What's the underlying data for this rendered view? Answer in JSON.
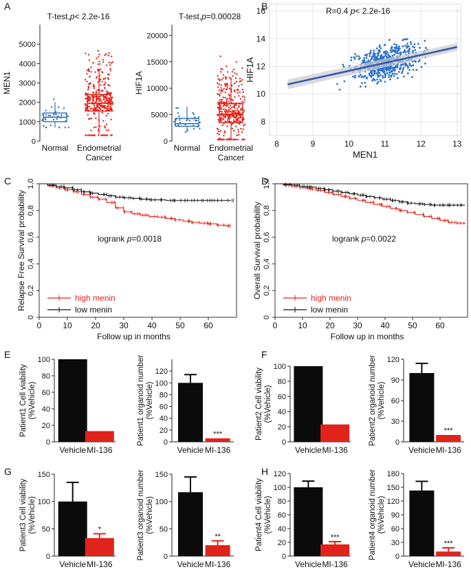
{
  "colors": {
    "normal": "#2e6fb7",
    "cancer": "#e2231a",
    "black": "#0b0b0b",
    "scatter_point": "#2e72c8",
    "fit_line": "#3957a6",
    "ci_band": "#c9ccd3",
    "km_high": "#e2231a",
    "km_low": "#111111"
  },
  "chart_data": [
    {
      "id": "A1",
      "type": "box",
      "panel_letter": "A",
      "title_prefix": "T-test,",
      "title_p": "p",
      "title_value": "< 2.2e-16",
      "ylabel": "MEN1",
      "ylim": [
        0,
        6000
      ],
      "yticks": [
        0,
        1000,
        2000,
        3000,
        4000,
        5000
      ],
      "categories": [
        "Normal",
        "Endometrial",
        "Cancer"
      ],
      "boxes": [
        {
          "name": "Normal",
          "q1": 1000,
          "median": 1230,
          "q3": 1450,
          "whisker_low": 700,
          "whisker_high": 2000,
          "n_points": 35
        },
        {
          "name": "Endometrial Cancer",
          "q1": 1550,
          "median": 1950,
          "q3": 2400,
          "whisker_low": 300,
          "whisker_high": 3700,
          "n_points": 360
        }
      ]
    },
    {
      "id": "A2",
      "type": "box",
      "title_prefix": "T-test,",
      "title_p": "p",
      "title_value": "=0.00028",
      "ylabel": "HIF1A",
      "ylim": [
        0,
        22000
      ],
      "yticks": [
        0,
        5000,
        10000,
        15000,
        20000
      ],
      "categories": [
        "Normal",
        "Endometrial",
        "Cancer"
      ],
      "boxes": [
        {
          "name": "Normal",
          "q1": 2800,
          "median": 3300,
          "q3": 4300,
          "whisker_low": 1700,
          "whisker_high": 6500,
          "n_points": 35
        },
        {
          "name": "Endometrial Cancer",
          "q1": 3500,
          "median": 5100,
          "q3": 7100,
          "whisker_low": 300,
          "whisker_high": 12000,
          "n_points": 360
        }
      ]
    },
    {
      "id": "B",
      "type": "scatter",
      "panel_letter": "B",
      "annotation_r": "R=0.4",
      "annotation_p": "p",
      "annotation_value": "< 2.2e-16",
      "xlabel": "MEN1",
      "ylabel": "HIF1A",
      "xlim": [
        7.8,
        13.1
      ],
      "ylim": [
        7,
        16.5
      ],
      "xticks": [
        8,
        9,
        10,
        11,
        12,
        13
      ],
      "yticks": [
        8,
        10,
        12,
        14,
        16
      ],
      "fit": {
        "x0": 8.3,
        "y0": 10.7,
        "x1": 13.0,
        "y1": 13.4
      },
      "center": [
        11.0,
        12.0
      ],
      "n_points": 550
    },
    {
      "id": "C",
      "type": "line",
      "subtype": "kaplan-meier",
      "panel_letter": "C",
      "ylabel": "Relapse Free Survival probability",
      "xlabel": "Follow up in months",
      "xlim": [
        0,
        70
      ],
      "ylim": [
        0,
        1.0
      ],
      "xticks": [
        0,
        10,
        20,
        30,
        40,
        50,
        60
      ],
      "yticks": [
        "0",
        "0,2",
        "0,4",
        "0,6",
        "0,8",
        "1,0"
      ],
      "annotation_prefix": "logrank ",
      "annotation_p": "p",
      "annotation_value": "=0.0018",
      "series": [
        {
          "name": "high menin",
          "x": [
            0,
            3,
            6,
            9,
            12,
            15,
            18,
            21,
            24,
            27,
            30,
            33,
            36,
            39,
            42,
            45,
            48,
            51,
            54,
            57,
            60,
            63,
            66,
            68
          ],
          "y": [
            1.0,
            0.985,
            0.97,
            0.955,
            0.94,
            0.92,
            0.9,
            0.885,
            0.86,
            0.82,
            0.79,
            0.775,
            0.765,
            0.755,
            0.75,
            0.74,
            0.73,
            0.72,
            0.71,
            0.705,
            0.7,
            0.69,
            0.685,
            0.685
          ]
        },
        {
          "name": "low menin",
          "x": [
            0,
            3,
            6,
            9,
            12,
            15,
            18,
            21,
            24,
            27,
            30,
            33,
            36,
            39,
            42,
            45,
            48,
            51,
            54,
            57,
            60,
            63,
            66,
            68
          ],
          "y": [
            1.0,
            0.99,
            0.98,
            0.97,
            0.955,
            0.94,
            0.93,
            0.92,
            0.91,
            0.9,
            0.895,
            0.89,
            0.885,
            0.88,
            0.88,
            0.875,
            0.875,
            0.875,
            0.875,
            0.875,
            0.875,
            0.875,
            0.875,
            0.875
          ]
        }
      ]
    },
    {
      "id": "D",
      "type": "line",
      "subtype": "kaplan-meier",
      "panel_letter": "D",
      "ylabel": "Overall Survival probability",
      "xlabel": "Follow up in months",
      "xlim": [
        0,
        70
      ],
      "ylim": [
        0,
        1.0
      ],
      "xticks": [
        0,
        10,
        20,
        30,
        40,
        50,
        60
      ],
      "yticks": [
        "0",
        "0,2",
        "0,4",
        "0,6",
        "0,8",
        "1,0"
      ],
      "annotation_prefix": "logrank ",
      "annotation_p": "p",
      "annotation_value": "=0.0022",
      "series": [
        {
          "name": "high menin",
          "x": [
            0,
            3,
            6,
            9,
            12,
            15,
            18,
            21,
            24,
            27,
            30,
            33,
            36,
            39,
            42,
            45,
            48,
            51,
            54,
            57,
            60,
            63,
            66,
            69
          ],
          "y": [
            1.0,
            0.99,
            0.98,
            0.97,
            0.96,
            0.95,
            0.935,
            0.92,
            0.905,
            0.89,
            0.875,
            0.86,
            0.845,
            0.83,
            0.815,
            0.8,
            0.785,
            0.77,
            0.755,
            0.74,
            0.725,
            0.71,
            0.705,
            0.7
          ]
        },
        {
          "name": "low menin",
          "x": [
            0,
            3,
            6,
            9,
            12,
            15,
            18,
            21,
            24,
            27,
            30,
            33,
            36,
            39,
            42,
            45,
            48,
            51,
            54,
            57,
            60,
            63,
            66,
            69
          ],
          "y": [
            1.0,
            0.995,
            0.99,
            0.98,
            0.975,
            0.965,
            0.955,
            0.945,
            0.935,
            0.925,
            0.915,
            0.905,
            0.895,
            0.885,
            0.875,
            0.865,
            0.855,
            0.85,
            0.845,
            0.84,
            0.84,
            0.84,
            0.84,
            0.84
          ]
        }
      ]
    },
    {
      "id": "E1",
      "type": "bar",
      "panel_letter": "E",
      "ylabel_lines": [
        "Patient1 Cell viability",
        "(%Vehicle)"
      ],
      "categories": [
        "Vehicle",
        "MI-136"
      ],
      "values": [
        100,
        13
      ],
      "errors": [
        0,
        0
      ],
      "significance": [
        "",
        ""
      ],
      "ylim": [
        0,
        100
      ],
      "yticks": [
        0,
        20,
        40,
        60,
        80,
        100
      ]
    },
    {
      "id": "E2",
      "type": "bar",
      "ylabel_lines": [
        "Patient1 organoid number",
        "(%Vehicle)"
      ],
      "categories": [
        "Vehicle",
        "MI-136"
      ],
      "values": [
        100,
        6
      ],
      "errors": [
        14,
        0
      ],
      "significance": [
        "",
        "***"
      ],
      "ylim": [
        0,
        140
      ],
      "yticks": [
        0,
        20,
        40,
        60,
        80,
        100,
        120
      ]
    },
    {
      "id": "F1",
      "type": "bar",
      "panel_letter": "F",
      "ylabel_lines": [
        "Patient2 Cell viability",
        "(%Vehicle)"
      ],
      "categories": [
        "Vehicle",
        "MI-136"
      ],
      "values": [
        100,
        23
      ],
      "errors": [
        0,
        0
      ],
      "significance": [
        "",
        ""
      ],
      "ylim": [
        0,
        100
      ],
      "yticks": [
        0,
        20,
        40,
        60,
        80,
        100
      ]
    },
    {
      "id": "F2",
      "type": "bar",
      "ylabel_lines": [
        "Patient2 organoid number",
        "(%Vehicle)"
      ],
      "categories": [
        "Vehicle",
        "MI-136"
      ],
      "values": [
        100,
        10
      ],
      "errors": [
        14,
        0
      ],
      "significance": [
        "",
        "***"
      ],
      "ylim": [
        0,
        120
      ],
      "yticks": [
        0,
        30,
        60,
        90,
        120
      ]
    },
    {
      "id": "G1",
      "type": "bar",
      "panel_letter": "G",
      "ylabel_lines": [
        "Patient3 Cell viability",
        "(%Vehicle)"
      ],
      "categories": [
        "Vehicle",
        "MI-136"
      ],
      "values": [
        100,
        33
      ],
      "errors": [
        35,
        8
      ],
      "significance": [
        "",
        "*"
      ],
      "ylim": [
        0,
        150
      ],
      "yticks": [
        0,
        50,
        100,
        150
      ]
    },
    {
      "id": "G2",
      "type": "bar",
      "ylabel_lines": [
        "Patient3 organoid number",
        "(%Vehicle)"
      ],
      "categories": [
        "Vehicle",
        "MI-136"
      ],
      "values": [
        117,
        20
      ],
      "errors": [
        28,
        8
      ],
      "significance": [
        "",
        "**"
      ],
      "ylim": [
        0,
        150
      ],
      "yticks": [
        0,
        50,
        100,
        150
      ]
    },
    {
      "id": "H1",
      "type": "bar",
      "panel_letter": "H",
      "ylabel_lines": [
        "Patient4 Cell viability",
        "(%Vehicle)"
      ],
      "categories": [
        "Vehicle",
        "MI-136"
      ],
      "values": [
        100,
        17
      ],
      "errors": [
        9,
        4
      ],
      "significance": [
        "",
        "***"
      ],
      "ylim": [
        0,
        120
      ],
      "yticks": [
        0,
        20,
        40,
        60,
        80,
        100,
        120
      ]
    },
    {
      "id": "H2",
      "type": "bar",
      "ylabel_lines": [
        "Patient4 organoid number",
        "(%Vehicle)"
      ],
      "categories": [
        "Vehicle",
        "MI-136"
      ],
      "values": [
        143,
        10
      ],
      "errors": [
        20,
        8
      ],
      "significance": [
        "",
        "***"
      ],
      "ylim": [
        0,
        180
      ],
      "yticks": [
        0,
        30,
        60,
        90,
        120,
        150,
        180
      ]
    }
  ]
}
